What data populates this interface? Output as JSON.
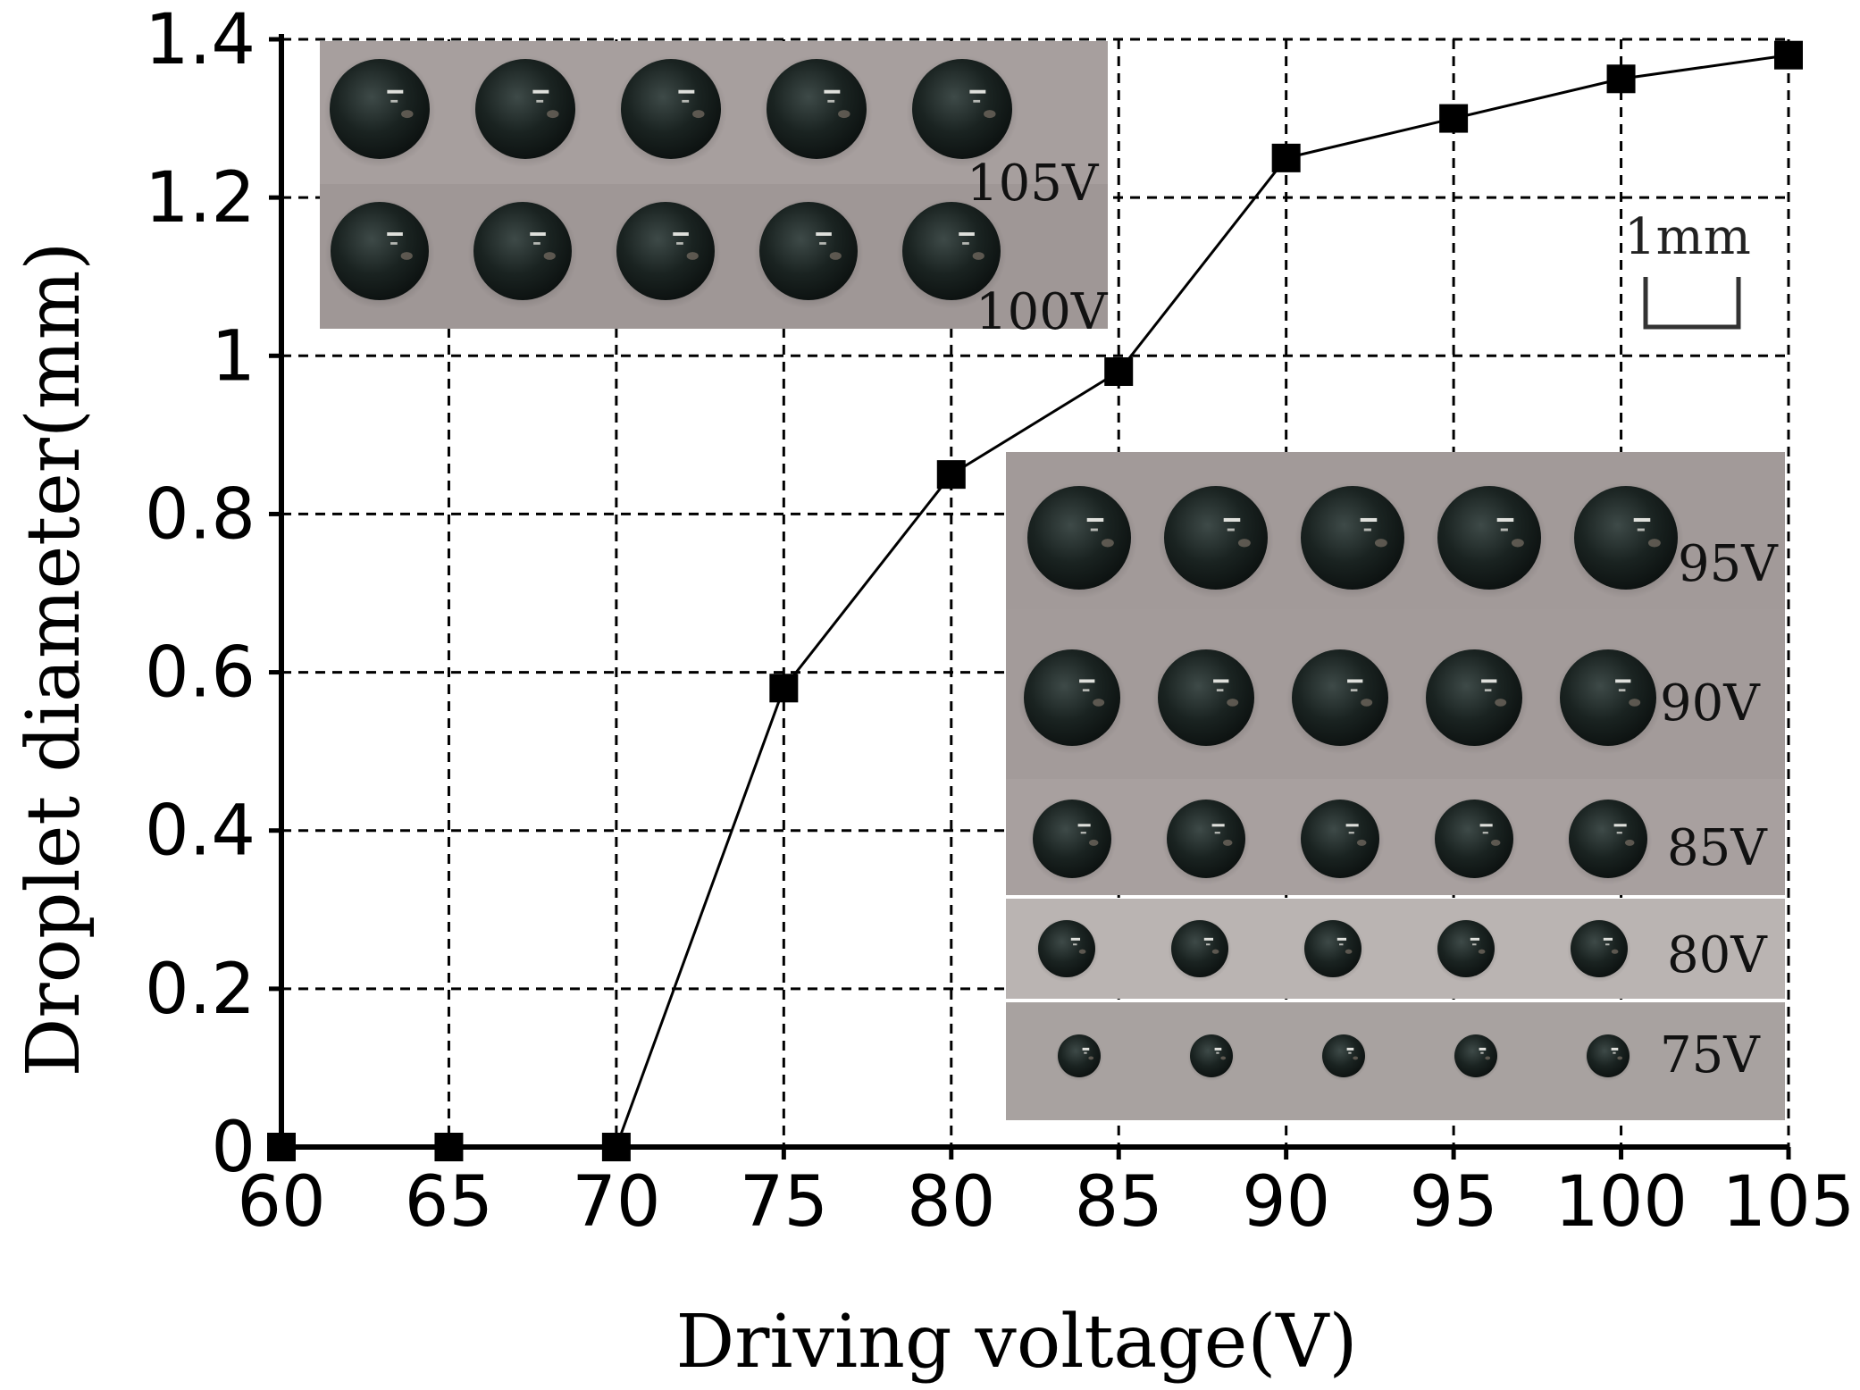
{
  "chart_data": {
    "type": "line",
    "title": "",
    "xlabel": "Driving voltage(V)",
    "ylabel": "Droplet diameter(mm)",
    "x": [
      60,
      65,
      70,
      75,
      80,
      85,
      90,
      95,
      100,
      105
    ],
    "x_tick_labels": [
      "60",
      "65",
      "70",
      "75",
      "80",
      "85",
      "90",
      "95",
      "100",
      "105"
    ],
    "y_tick_labels": [
      "0",
      "0.2",
      "0.4",
      "0.6",
      "0.8",
      "1",
      "1.2",
      "1.4"
    ],
    "y_ticks": [
      0,
      0.2,
      0.4,
      0.6,
      0.8,
      1.0,
      1.2,
      1.4
    ],
    "xlim": [
      60,
      105
    ],
    "ylim": [
      0,
      1.4
    ],
    "grid": true,
    "grid_style": "dashed",
    "marker": "square",
    "series": [
      {
        "values": [
          0,
          0,
          0,
          0.58,
          0.85,
          0.98,
          1.25,
          1.3,
          1.35,
          1.38
        ],
        "color": "#000000"
      }
    ],
    "insets": [
      {
        "description_id": "top-left-droplet-photo",
        "rows": [
          {
            "label": "105V",
            "droplets": 5
          },
          {
            "label": "100V",
            "droplets": 5
          }
        ]
      },
      {
        "description_id": "bottom-right-droplet-photo",
        "rows": [
          {
            "label": "95V",
            "droplets": 5
          },
          {
            "label": "90V",
            "droplets": 5
          },
          {
            "label": "85V",
            "droplets": 5
          },
          {
            "label": "80V",
            "droplets": 5
          },
          {
            "label": "75V",
            "droplets": 5
          }
        ]
      }
    ],
    "scale_bar_label": "1mm"
  }
}
